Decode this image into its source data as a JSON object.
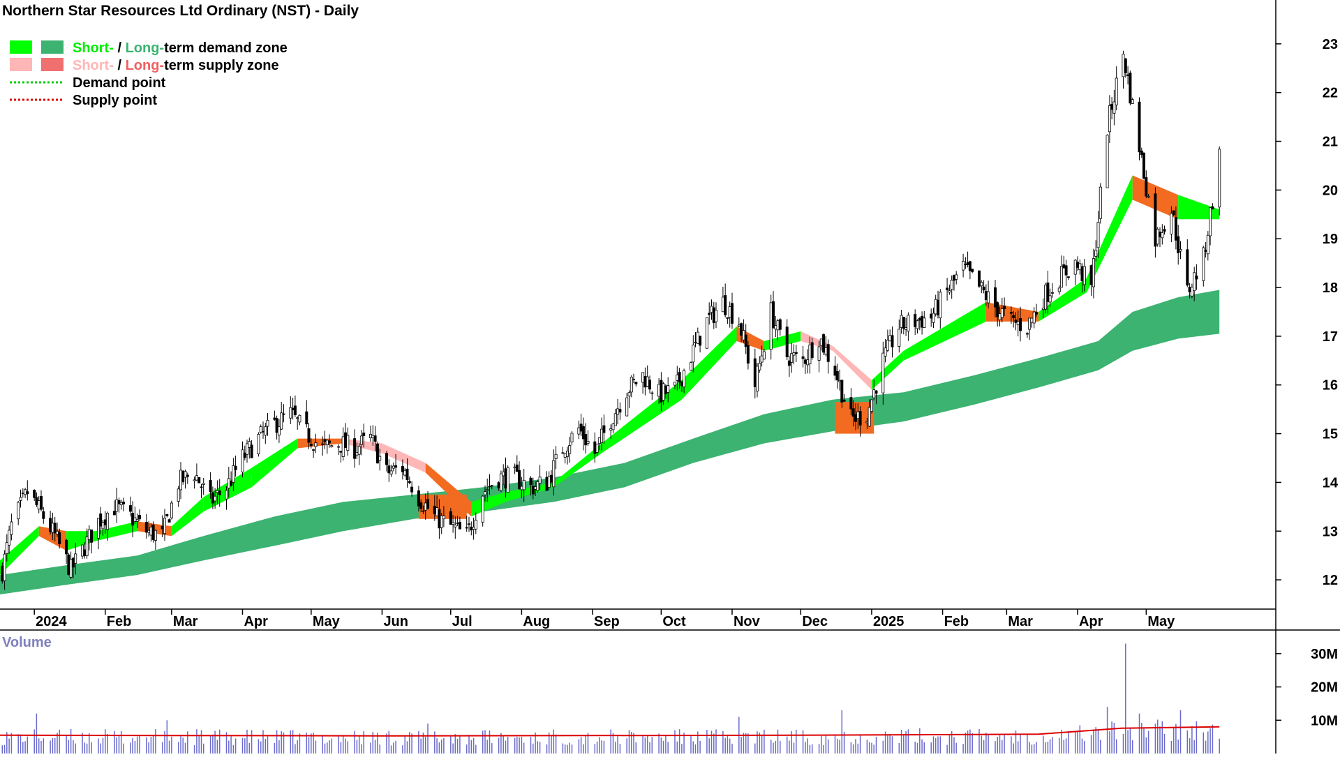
{
  "chart_data": {
    "type": "candlestick",
    "title": "Northern Star Resources Ltd Ordinary (NST) - Daily",
    "legend": {
      "placement": "top-left",
      "items": [
        {
          "parts": [
            {
              "text": "Short-",
              "color": "#00ee00"
            },
            {
              "text": " / ",
              "color": "#000000"
            },
            {
              "text": "Long-",
              "color": "#3cb371"
            },
            {
              "text": "term demand zone",
              "color": "#000000"
            }
          ],
          "swatches": [
            "#00ff00",
            "#3cb371"
          ],
          "kind": "box"
        },
        {
          "parts": [
            {
              "text": "Short-",
              "color": "#ffb6b6"
            },
            {
              "text": " / ",
              "color": "#000000"
            },
            {
              "text": "Long-",
              "color": "#f06060"
            },
            {
              "text": "term supply zone",
              "color": "#000000"
            }
          ],
          "swatches": [
            "#ffb6b6",
            "#f07070"
          ],
          "kind": "box"
        },
        {
          "parts": [
            {
              "text": "Demand point",
              "color": "#000000"
            }
          ],
          "swatches": [
            "#00cc00"
          ],
          "kind": "dotted"
        },
        {
          "parts": [
            {
              "text": "Supply point",
              "color": "#000000"
            }
          ],
          "swatches": [
            "#dd0000"
          ],
          "kind": "dotted"
        }
      ]
    },
    "colors": {
      "short_demand": "#00ff00",
      "long_demand": "#3cb371",
      "short_supply": "#ffb6b6",
      "overlap_supply": "#f26b21",
      "candle_up_fill": "#ffffff",
      "candle_down_fill": "#000000",
      "volume_bar": "#6a6acd",
      "volume_ma": "#dd0000"
    },
    "price_axis": {
      "side": "right",
      "ylim": [
        11.4,
        23.9
      ],
      "ticks": [
        12,
        13,
        14,
        15,
        16,
        17,
        18,
        19,
        20,
        21,
        22,
        23
      ]
    },
    "time_axis": {
      "x_range": [
        "2023-12-17",
        "2025-06-12"
      ],
      "labels": [
        {
          "date": "2024-01-01",
          "text": "2024"
        },
        {
          "date": "2024-02-01",
          "text": "Feb"
        },
        {
          "date": "2024-03-01",
          "text": "Mar"
        },
        {
          "date": "2024-04-01",
          "text": "Apr"
        },
        {
          "date": "2024-05-01",
          "text": "May"
        },
        {
          "date": "2024-06-01",
          "text": "Jun"
        },
        {
          "date": "2024-07-01",
          "text": "Jul"
        },
        {
          "date": "2024-08-01",
          "text": "Aug"
        },
        {
          "date": "2024-09-01",
          "text": "Sep"
        },
        {
          "date": "2024-10-01",
          "text": "Oct"
        },
        {
          "date": "2024-11-01",
          "text": "Nov"
        },
        {
          "date": "2024-12-01",
          "text": "Dec"
        },
        {
          "date": "2025-01-01",
          "text": "2025"
        },
        {
          "date": "2025-02-01",
          "text": "Feb"
        },
        {
          "date": "2025-03-01",
          "text": "Mar"
        },
        {
          "date": "2025-04-01",
          "text": "Apr"
        },
        {
          "date": "2025-05-01",
          "text": "May"
        }
      ]
    },
    "close_series": [
      [
        "2023-12-18",
        12.2
      ],
      [
        "2023-12-22",
        13.1
      ],
      [
        "2023-12-29",
        13.8
      ],
      [
        "2024-01-05",
        13.3
      ],
      [
        "2024-01-10",
        12.9
      ],
      [
        "2024-01-17",
        12.2
      ],
      [
        "2024-01-22",
        12.6
      ],
      [
        "2024-01-29",
        13.2
      ],
      [
        "2024-02-05",
        13.5
      ],
      [
        "2024-02-12",
        13.3
      ],
      [
        "2024-02-19",
        13.0
      ],
      [
        "2024-02-26",
        12.9
      ],
      [
        "2024-03-04",
        14.0
      ],
      [
        "2024-03-11",
        14.2
      ],
      [
        "2024-03-18",
        13.6
      ],
      [
        "2024-03-25",
        13.9
      ],
      [
        "2024-04-01",
        14.5
      ],
      [
        "2024-04-08",
        14.9
      ],
      [
        "2024-04-15",
        15.2
      ],
      [
        "2024-04-22",
        15.4
      ],
      [
        "2024-04-29",
        15.0
      ],
      [
        "2024-05-06",
        14.7
      ],
      [
        "2024-05-13",
        14.8
      ],
      [
        "2024-05-20",
        14.7
      ],
      [
        "2024-05-27",
        14.9
      ],
      [
        "2024-06-03",
        14.2
      ],
      [
        "2024-06-10",
        14.3
      ],
      [
        "2024-06-17",
        13.7
      ],
      [
        "2024-06-24",
        13.3
      ],
      [
        "2024-07-01",
        13.1
      ],
      [
        "2024-07-08",
        12.9
      ],
      [
        "2024-07-15",
        13.8
      ],
      [
        "2024-07-22",
        14.1
      ],
      [
        "2024-07-29",
        14.1
      ],
      [
        "2024-08-05",
        13.9
      ],
      [
        "2024-08-12",
        14.0
      ],
      [
        "2024-08-19",
        14.7
      ],
      [
        "2024-08-26",
        15.1
      ],
      [
        "2024-09-02",
        14.6
      ],
      [
        "2024-09-09",
        15.3
      ],
      [
        "2024-09-16",
        15.9
      ],
      [
        "2024-09-23",
        16.2
      ],
      [
        "2024-09-30",
        15.8
      ],
      [
        "2024-10-07",
        15.9
      ],
      [
        "2024-10-14",
        16.6
      ],
      [
        "2024-10-21",
        17.3
      ],
      [
        "2024-10-28",
        17.7
      ],
      [
        "2024-11-04",
        17.3
      ],
      [
        "2024-11-11",
        16.0
      ],
      [
        "2024-11-18",
        17.5
      ],
      [
        "2024-11-25",
        16.6
      ],
      [
        "2024-12-02",
        16.5
      ],
      [
        "2024-12-09",
        17.0
      ],
      [
        "2024-12-16",
        16.3
      ],
      [
        "2024-12-23",
        15.3
      ],
      [
        "2024-12-30",
        15.4
      ],
      [
        "2025-01-06",
        16.5
      ],
      [
        "2025-01-13",
        17.2
      ],
      [
        "2025-01-20",
        17.3
      ],
      [
        "2025-01-27",
        17.4
      ],
      [
        "2025-02-03",
        17.9
      ],
      [
        "2025-02-10",
        18.4
      ],
      [
        "2025-02-17",
        18.0
      ],
      [
        "2025-02-24",
        17.6
      ],
      [
        "2025-03-03",
        17.3
      ],
      [
        "2025-03-10",
        17.2
      ],
      [
        "2025-03-17",
        17.8
      ],
      [
        "2025-03-24",
        18.2
      ],
      [
        "2025-03-31",
        18.5
      ],
      [
        "2025-04-07",
        18.0
      ],
      [
        "2025-04-14",
        21.3
      ],
      [
        "2025-04-21",
        22.8
      ],
      [
        "2025-04-28",
        20.9
      ],
      [
        "2025-05-05",
        19.0
      ],
      [
        "2025-05-12",
        19.6
      ],
      [
        "2025-05-19",
        17.9
      ],
      [
        "2025-05-26",
        18.6
      ],
      [
        "2025-06-02",
        20.7
      ]
    ],
    "long_term_demand_zone": [
      [
        "2023-12-17",
        11.7,
        12.1
      ],
      [
        "2024-01-15",
        11.9,
        12.3
      ],
      [
        "2024-02-15",
        12.1,
        12.5
      ],
      [
        "2024-03-15",
        12.4,
        12.9
      ],
      [
        "2024-04-15",
        12.7,
        13.3
      ],
      [
        "2024-05-15",
        13.0,
        13.6
      ],
      [
        "2024-06-15",
        13.25,
        13.75
      ],
      [
        "2024-07-15",
        13.4,
        13.9
      ],
      [
        "2024-08-15",
        13.6,
        14.1
      ],
      [
        "2024-09-15",
        13.9,
        14.4
      ],
      [
        "2024-10-15",
        14.4,
        14.9
      ],
      [
        "2024-11-15",
        14.8,
        15.4
      ],
      [
        "2024-12-15",
        15.05,
        15.7
      ],
      [
        "2025-01-15",
        15.25,
        15.85
      ],
      [
        "2025-02-15",
        15.6,
        16.2
      ],
      [
        "2025-03-15",
        15.95,
        16.55
      ],
      [
        "2025-04-10",
        16.3,
        16.9
      ],
      [
        "2025-04-25",
        16.7,
        17.5
      ],
      [
        "2025-05-15",
        16.95,
        17.8
      ],
      [
        "2025-06-02",
        17.05,
        17.95
      ]
    ],
    "short_term_zone": [
      [
        "2023-12-17",
        12.1,
        12.4,
        "demand"
      ],
      [
        "2024-01-03",
        12.9,
        13.1,
        "demand"
      ],
      [
        "2024-01-15",
        12.6,
        13.0,
        "supply_overlap"
      ],
      [
        "2024-01-28",
        12.8,
        13.0,
        "demand"
      ],
      [
        "2024-02-15",
        13.0,
        13.2,
        "demand"
      ],
      [
        "2024-03-01",
        12.9,
        13.1,
        "supply_overlap"
      ],
      [
        "2024-03-15",
        13.4,
        13.7,
        "demand"
      ],
      [
        "2024-04-05",
        13.9,
        14.3,
        "demand"
      ],
      [
        "2024-04-25",
        14.7,
        14.9,
        "demand"
      ],
      [
        "2024-05-15",
        14.8,
        14.9,
        "supply_overlap"
      ],
      [
        "2024-06-01",
        14.6,
        14.8,
        "short_supply"
      ],
      [
        "2024-06-20",
        14.2,
        14.4,
        "short_supply"
      ],
      [
        "2024-07-10",
        13.3,
        13.6,
        "supply_overlap"
      ],
      [
        "2024-07-25",
        13.6,
        13.8,
        "demand"
      ],
      [
        "2024-08-15",
        13.9,
        14.0,
        "demand"
      ],
      [
        "2024-09-05",
        14.6,
        14.8,
        "demand"
      ],
      [
        "2024-10-10",
        15.7,
        16.1,
        "demand"
      ],
      [
        "2024-11-03",
        16.9,
        17.2,
        "demand"
      ],
      [
        "2024-11-15",
        16.7,
        16.9,
        "supply_overlap"
      ],
      [
        "2024-12-01",
        16.9,
        17.1,
        "demand"
      ],
      [
        "2024-12-15",
        16.7,
        16.8,
        "short_supply"
      ],
      [
        "2025-01-01",
        15.9,
        16.1,
        "short_supply"
      ],
      [
        "2025-01-15",
        16.5,
        16.7,
        "demand"
      ],
      [
        "2025-02-20",
        17.3,
        17.7,
        "demand"
      ],
      [
        "2025-03-15",
        17.3,
        17.5,
        "supply_overlap"
      ],
      [
        "2025-04-05",
        17.9,
        18.2,
        "demand"
      ],
      [
        "2025-04-25",
        19.8,
        20.3,
        "demand"
      ],
      [
        "2025-05-15",
        19.4,
        19.9,
        "supply_overlap"
      ],
      [
        "2025-06-02",
        19.4,
        19.6,
        "demand"
      ]
    ],
    "overlap_blocks": [
      {
        "from": "2024-06-17",
        "to": "2024-07-08",
        "low": 13.25,
        "high": 13.75
      },
      {
        "from": "2024-12-16",
        "to": "2025-01-02",
        "low": 15.0,
        "high": 15.65
      }
    ],
    "volume": {
      "label": "Volume",
      "ylim": [
        0,
        35000000
      ],
      "ticks": [
        {
          "value": 10000000,
          "text": "10M"
        },
        {
          "value": 20000000,
          "text": "20M"
        },
        {
          "value": 30000000,
          "text": "30M"
        }
      ],
      "baseline_volume": 4500000,
      "ma_series": [
        [
          "2023-12-17",
          5.5
        ],
        [
          "2024-06-01",
          5.3
        ],
        [
          "2024-12-01",
          5.5
        ],
        [
          "2025-03-15",
          5.8
        ],
        [
          "2025-04-20",
          7.6
        ],
        [
          "2025-06-02",
          8.0
        ]
      ],
      "spikes": [
        [
          "2024-01-02",
          12
        ],
        [
          "2024-02-28",
          10
        ],
        [
          "2024-06-21",
          9
        ],
        [
          "2024-11-04",
          11
        ],
        [
          "2024-12-19",
          13
        ],
        [
          "2025-04-14",
          14
        ],
        [
          "2025-04-22",
          33
        ],
        [
          "2025-04-28",
          12
        ],
        [
          "2025-05-16",
          13
        ]
      ]
    }
  }
}
